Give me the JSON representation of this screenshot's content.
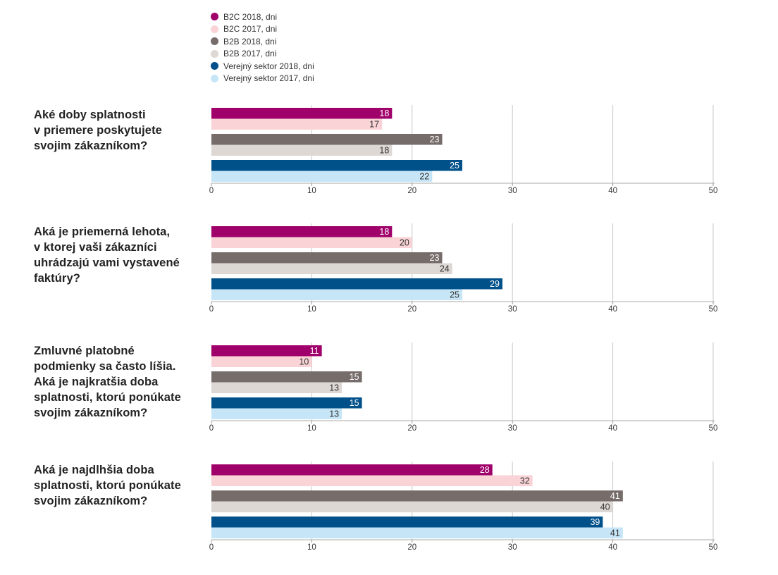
{
  "chart_data": {
    "type": "bar",
    "orientation": "horizontal",
    "legend_position": "top",
    "series": [
      {
        "name": "B2C 2018, dni",
        "color": "#a0006a"
      },
      {
        "name": "B2C 2017, dni",
        "color": "#f9d3d5"
      },
      {
        "name": "B2B 2018, dni",
        "color": "#766d6b"
      },
      {
        "name": "B2B 2017, dni",
        "color": "#ddd8d4"
      },
      {
        "name": "Verejný sektor 2018, dni",
        "color": "#00508a"
      },
      {
        "name": "Verejný sektor 2017, dni",
        "color": "#c6e6f7"
      }
    ],
    "xlim": [
      0,
      50
    ],
    "xticks": [
      "0",
      "10",
      "20",
      "30",
      "40",
      "50"
    ],
    "grid": true,
    "panels": [
      {
        "question": [
          "Aké doby splatnosti",
          "v priemere poskytujete",
          "svojim zákazníkom?"
        ],
        "values": [
          18,
          17,
          23,
          18,
          25,
          22
        ]
      },
      {
        "question": [
          "Aká je priemerná lehota,",
          "v ktorej vaši zákazníci",
          "uhrádzajú vami vystavené",
          "faktúry?"
        ],
        "values": [
          18,
          20,
          23,
          24,
          29,
          25
        ]
      },
      {
        "question": [
          "Zmluvné platobné",
          "podmienky sa často líšia.",
          "Aká je najkratšia doba",
          "splatnosti, ktorú ponúkate",
          "svojim zákazníkom?"
        ],
        "values": [
          11,
          10,
          15,
          13,
          15,
          13
        ]
      },
      {
        "question": [
          "Aká je najdlhšia doba",
          "splatnosti, ktorú ponúkate",
          "svojim zákazníkom?"
        ],
        "values": [
          28,
          32,
          41,
          40,
          39,
          41
        ]
      }
    ]
  }
}
